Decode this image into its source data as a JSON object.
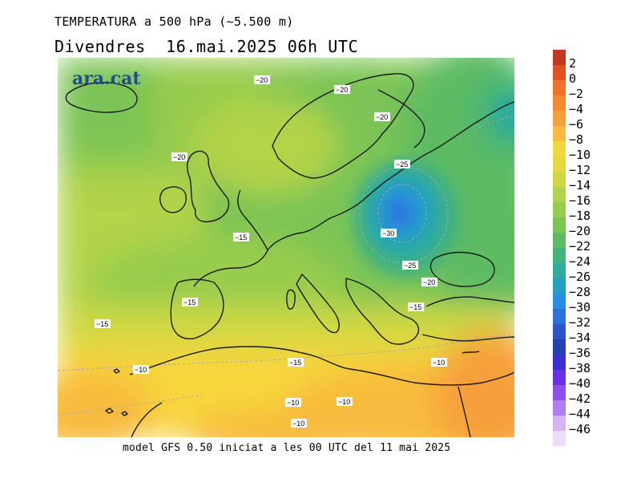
{
  "header": {
    "title": "TEMPERATURA a 500 hPa (~5.500 m)",
    "date_line": "Divendres  16.mai.2025 06h UTC"
  },
  "logo": {
    "text": "ara.cat"
  },
  "footer": {
    "text": "model GFS 0.50 iniciat a les 00 UTC del 11 mai 2025"
  },
  "colorbar": {
    "items": [
      {
        "label": "2",
        "color": "#c1371f"
      },
      {
        "label": "0",
        "color": "#e0511f"
      },
      {
        "label": "−2",
        "color": "#f0702a"
      },
      {
        "label": "−4",
        "color": "#f48a2f"
      },
      {
        "label": "−6",
        "color": "#f7a03a"
      },
      {
        "label": "−8",
        "color": "#f8bb3d"
      },
      {
        "label": "−10",
        "color": "#f7d53c"
      },
      {
        "label": "−12",
        "color": "#e6d83e"
      },
      {
        "label": "−14",
        "color": "#cfd843"
      },
      {
        "label": "−16",
        "color": "#b3d34a"
      },
      {
        "label": "−18",
        "color": "#98cc4e"
      },
      {
        "label": "−20",
        "color": "#7cc454"
      },
      {
        "label": "−22",
        "color": "#5dbb62"
      },
      {
        "label": "−24",
        "color": "#43b37c"
      },
      {
        "label": "−26",
        "color": "#2eab9c"
      },
      {
        "label": "−28",
        "color": "#24a1bf"
      },
      {
        "label": "−30",
        "color": "#2a8ee0"
      },
      {
        "label": "−32",
        "color": "#2c72d9"
      },
      {
        "label": "−34",
        "color": "#2a55c7"
      },
      {
        "label": "−36",
        "color": "#2540b0"
      },
      {
        "label": "−38",
        "color": "#3a2fd4"
      },
      {
        "label": "−40",
        "color": "#6a2fe8"
      },
      {
        "label": "−42",
        "color": "#8d4ff0"
      },
      {
        "label": "−44",
        "color": "#b07ef2"
      },
      {
        "label": "−46",
        "color": "#d4b4f5"
      },
      {
        "label": "",
        "color": "#eddcfb"
      }
    ]
  },
  "isotherm_labels": [
    {
      "text": "−20"
    },
    {
      "text": "−20"
    },
    {
      "text": "−20"
    },
    {
      "text": "−20"
    },
    {
      "text": "−25"
    },
    {
      "text": "−30"
    },
    {
      "text": "−25"
    },
    {
      "text": "−20"
    },
    {
      "text": "−15"
    },
    {
      "text": "−15"
    },
    {
      "text": "−15"
    },
    {
      "text": "−15"
    },
    {
      "text": "−15"
    },
    {
      "text": "−10"
    },
    {
      "text": "−10"
    },
    {
      "text": "−10"
    },
    {
      "text": "−10"
    },
    {
      "text": "−10"
    }
  ]
}
